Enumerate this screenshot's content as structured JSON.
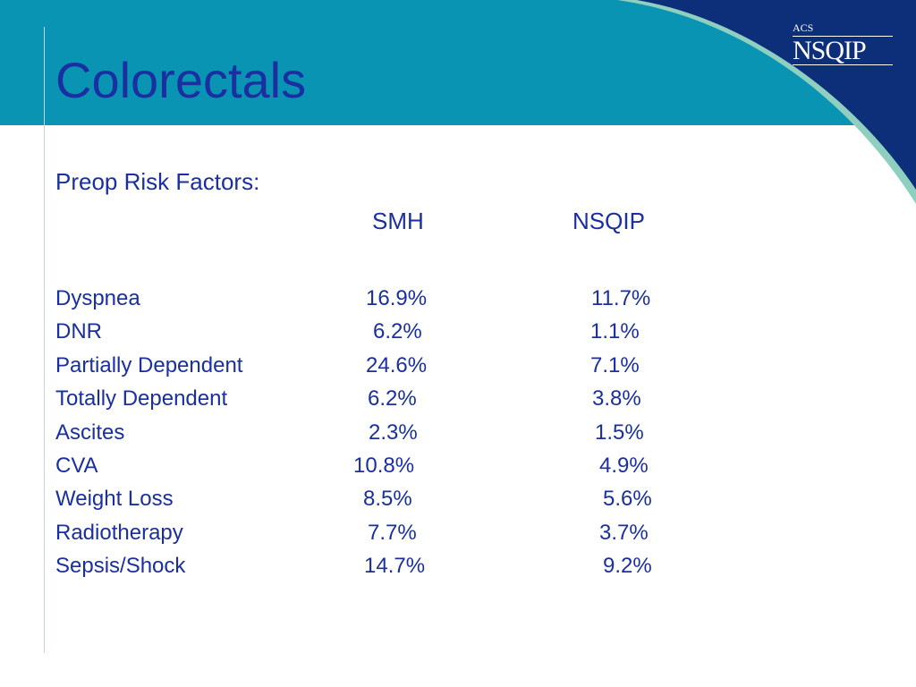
{
  "slide": {
    "title": "Colorectals",
    "subtitle": "Preop Risk Factors:",
    "logo": {
      "top_text": "ACS",
      "main_text": "NSQIP"
    },
    "columns": [
      "SMH",
      "NSQIP"
    ],
    "rows": [
      {
        "label": "Dyspnea",
        "smh": "16.9%",
        "nsqip": "11.7%"
      },
      {
        "label": "DNR",
        "smh": "6.2%",
        "nsqip": "1.1%"
      },
      {
        "label": "Partially Dependent",
        "smh": "24.6%",
        "nsqip": "7.1%"
      },
      {
        "label": "Totally Dependent",
        "smh": "6.2%",
        "nsqip": "3.8%"
      },
      {
        "label": "Ascites",
        "smh": "2.3%",
        "nsqip": "1.5%"
      },
      {
        "label": "CVA",
        "smh": "10.8%",
        "nsqip": "4.9%"
      },
      {
        "label": "Weight Loss",
        "smh": "8.5%",
        "nsqip": "5.6%"
      },
      {
        "label": "Radiotherapy",
        "smh": "7.7%",
        "nsqip": "3.7%"
      },
      {
        "label": "Sepsis/Shock",
        "smh": "14.7%",
        "nsqip": "9.2%"
      }
    ]
  },
  "colors": {
    "header": "#0a94b3",
    "corner_navy": "#0d2f7a",
    "swoosh": "#8fcfc0",
    "text": "#1a2fa0"
  }
}
